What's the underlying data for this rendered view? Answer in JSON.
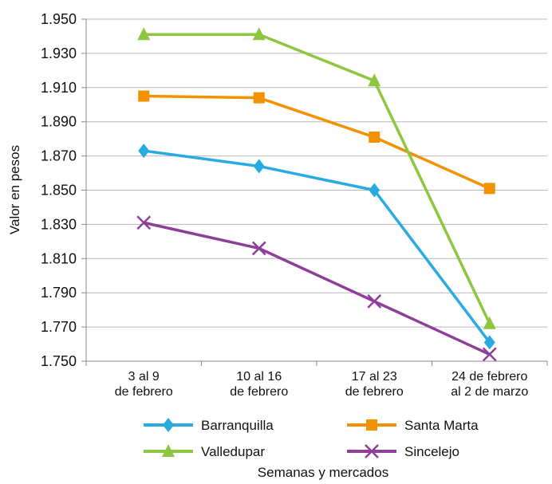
{
  "chart_data": {
    "type": "line",
    "title": "",
    "xlabel": "Semanas y mercados",
    "ylabel": "Valor en pesos",
    "ylim": [
      1750,
      1950
    ],
    "yticks": [
      1750,
      1770,
      1790,
      1810,
      1830,
      1850,
      1870,
      1890,
      1910,
      1930,
      1950
    ],
    "ytick_labels": [
      "1.750",
      "1.770",
      "1.790",
      "1.810",
      "1.830",
      "1.850",
      "1.870",
      "1.890",
      "1.910",
      "1.930",
      "1.950"
    ],
    "categories": [
      [
        "3 al 9",
        "de febrero"
      ],
      [
        "10 al 16",
        "de febrero"
      ],
      [
        "17 al 23",
        "de febrero"
      ],
      [
        "24 de febrero",
        "al 2 de marzo"
      ]
    ],
    "grid": "horizontal",
    "legend_position": "bottom",
    "series": [
      {
        "name": "Barranquilla",
        "color": "#29abe2",
        "marker": "diamond",
        "values": [
          1873,
          1864,
          1850,
          1761
        ]
      },
      {
        "name": "Santa Marta",
        "color": "#f39200",
        "marker": "square",
        "values": [
          1905,
          1904,
          1881,
          1851
        ]
      },
      {
        "name": "Valledupar",
        "color": "#8dc63f",
        "marker": "triangle",
        "values": [
          1941,
          1941,
          1914,
          1772
        ]
      },
      {
        "name": "Sincelejo",
        "color": "#8e3f97",
        "marker": "x",
        "values": [
          1831,
          1816,
          1785,
          1754
        ]
      }
    ]
  }
}
